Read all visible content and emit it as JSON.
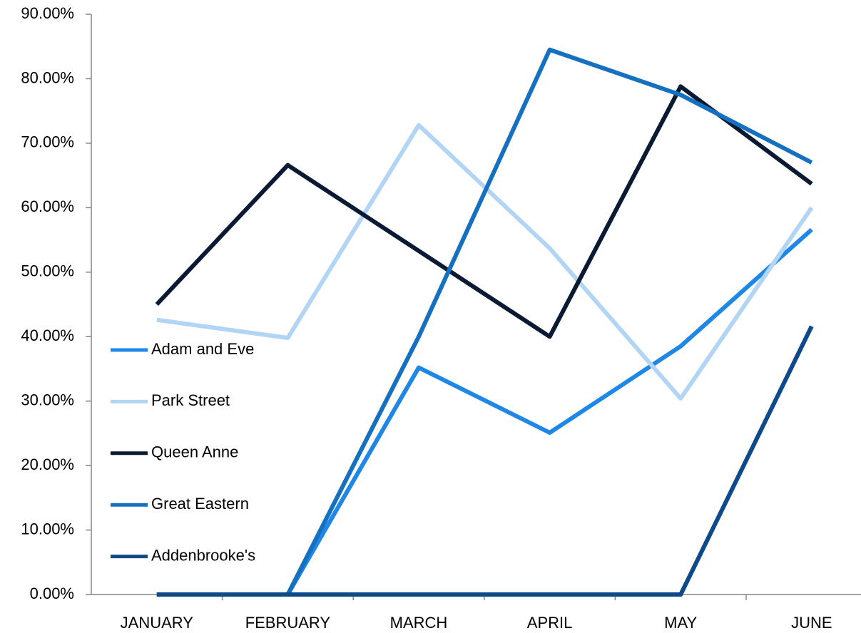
{
  "chart_data": {
    "type": "line",
    "categories": [
      "JANUARY",
      "FEBRUARY",
      "MARCH",
      "APRIL",
      "MAY",
      "JUNE"
    ],
    "series": [
      {
        "name": "Adam and Eve",
        "color": "#1f87e6",
        "values": [
          0,
          0,
          35.2,
          25.1,
          38.5,
          56.6
        ]
      },
      {
        "name": "Park Street",
        "color": "#b3d5f5",
        "values": [
          42.6,
          39.8,
          72.8,
          53.7,
          30.4,
          60.0
        ]
      },
      {
        "name": "Queen Anne",
        "color": "#0b1a33",
        "values": [
          45.0,
          66.6,
          53.3,
          40.0,
          78.8,
          63.7
        ]
      },
      {
        "name": "Great Eastern",
        "color": "#1570c0",
        "values": [
          0,
          0,
          40.0,
          84.5,
          77.5,
          67.0
        ]
      },
      {
        "name": "Addenbrooke's",
        "color": "#0e4a8a",
        "values": [
          0,
          0,
          0,
          0,
          0,
          41.6
        ]
      }
    ],
    "ylim": [
      0,
      90
    ],
    "yticks": [
      {
        "value": 0,
        "label": "0.00%"
      },
      {
        "value": 10,
        "label": "10.00%"
      },
      {
        "value": 20,
        "label": "20.00%"
      },
      {
        "value": 30,
        "label": "30.00%"
      },
      {
        "value": 40,
        "label": "40.00%"
      },
      {
        "value": 50,
        "label": "50.00%"
      },
      {
        "value": 60,
        "label": "60.00%"
      },
      {
        "value": 70,
        "label": "70.00%"
      },
      {
        "value": 80,
        "label": "80.00%"
      },
      {
        "value": 90,
        "label": "90.00%"
      }
    ],
    "grid": false,
    "legend": "left"
  }
}
